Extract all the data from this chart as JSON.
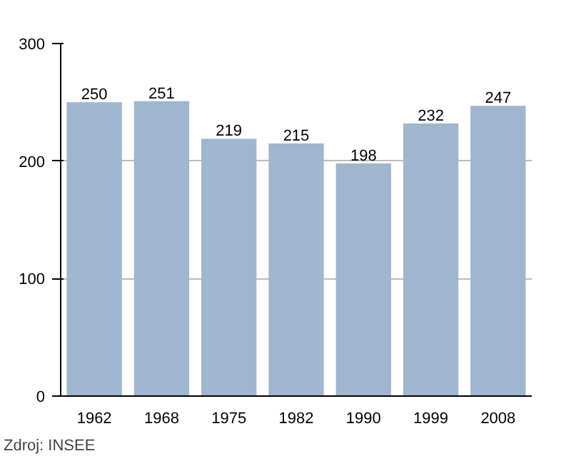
{
  "chart_data": {
    "type": "bar",
    "categories": [
      "1962",
      "1968",
      "1975",
      "1982",
      "1990",
      "1999",
      "2008"
    ],
    "values": [
      250,
      251,
      219,
      215,
      198,
      232,
      247
    ],
    "color": "#9fb6ce",
    "ylim": [
      0,
      300
    ],
    "yticks": [
      0,
      100,
      200,
      300
    ],
    "grid": "y",
    "data_labels": true,
    "annotations": [
      "Zdroj: INSEE"
    ]
  }
}
